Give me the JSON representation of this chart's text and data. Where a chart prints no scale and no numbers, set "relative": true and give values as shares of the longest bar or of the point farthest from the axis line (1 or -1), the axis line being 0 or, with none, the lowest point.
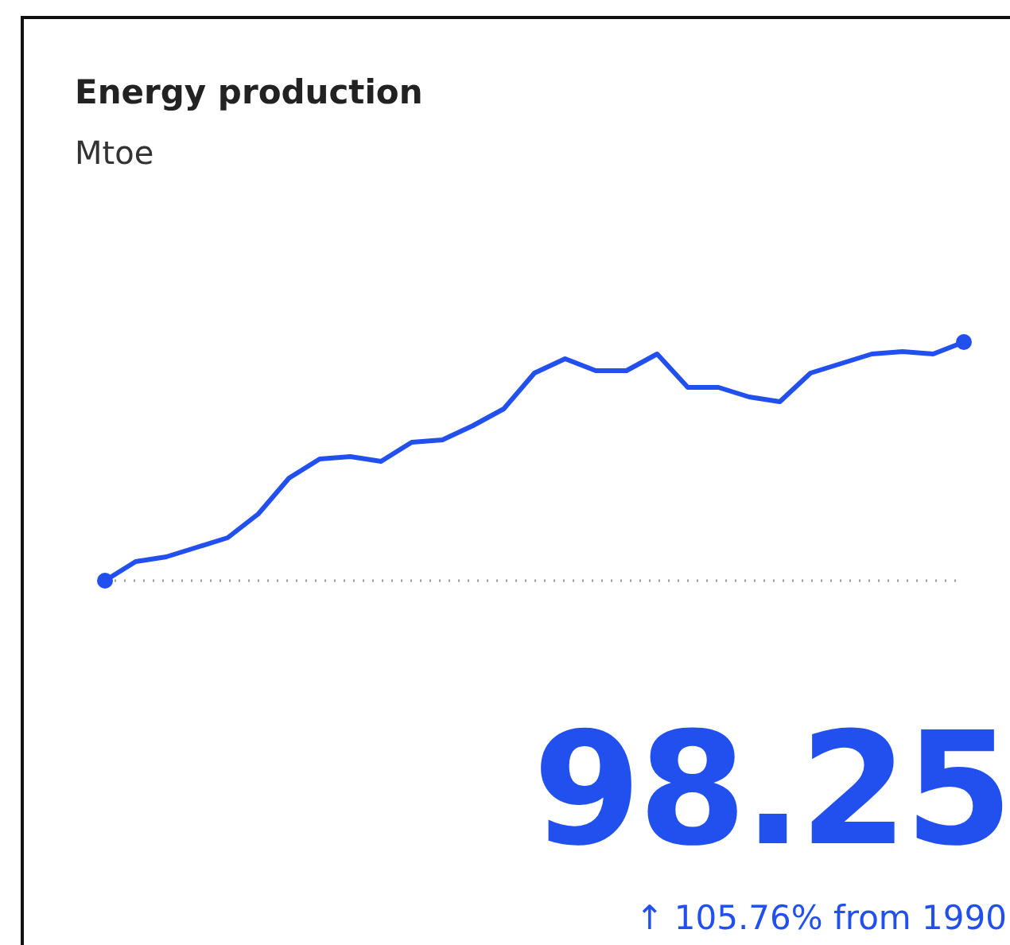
{
  "chart_data": {
    "type": "line",
    "title": "Energy production",
    "subtitle": "Mtoe",
    "relative": true,
    "categories": [
      null,
      null,
      null,
      null,
      null,
      null,
      null,
      null,
      null,
      null,
      null,
      null,
      null,
      null,
      null,
      null,
      null,
      null,
      null,
      null,
      null,
      null,
      null,
      null,
      null,
      null,
      null,
      null,
      null
    ],
    "series": [
      {
        "color": "#2250ee",
        "values": [
          0,
          0.08,
          0.1,
          0.14,
          0.18,
          0.28,
          0.43,
          0.51,
          0.52,
          0.5,
          0.58,
          0.59,
          0.65,
          0.72,
          0.87,
          0.93,
          0.88,
          0.88,
          0.95,
          0.81,
          0.81,
          0.77,
          0.75,
          0.87,
          0.91,
          0.95,
          0.96,
          0.95,
          1
        ]
      }
    ],
    "ref_lines": [
      {
        "axis": "y",
        "value": 0,
        "color": "#999999",
        "line_style": "dotted"
      }
    ],
    "annotations": [
      "98.25",
      "↑ 105.76% from 1990"
    ]
  }
}
